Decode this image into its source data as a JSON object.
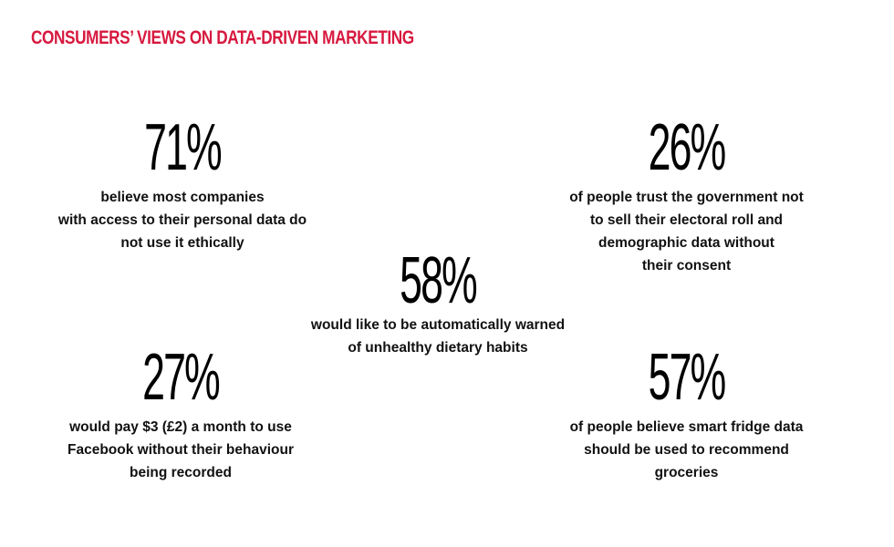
{
  "title": "CONSUMERS’ VIEWS ON DATA-DRIVEN MARKETING",
  "chart_data": {
    "type": "table",
    "stats": [
      {
        "value": 71,
        "label": "71%",
        "text": "believe most companies\nwith access to their personal data do\nnot use it ethically"
      },
      {
        "value": 26,
        "label": "26%",
        "text": "of people trust the government not\nto sell their electoral roll and\ndemographic data without\ntheir consent"
      },
      {
        "value": 58,
        "label": "58%",
        "text": "would like to be automatically warned\nof unhealthy dietary habits"
      },
      {
        "value": 27,
        "label": "27%",
        "text": "would pay $3 (£2) a month to use\nFacebook without their behaviour\nbeing recorded"
      },
      {
        "value": 57,
        "label": "57%",
        "text": "of people believe smart fridge data\nshould be used to recommend\ngroceries"
      }
    ]
  },
  "colors": {
    "title": "#d7193f",
    "text": "#111111"
  }
}
